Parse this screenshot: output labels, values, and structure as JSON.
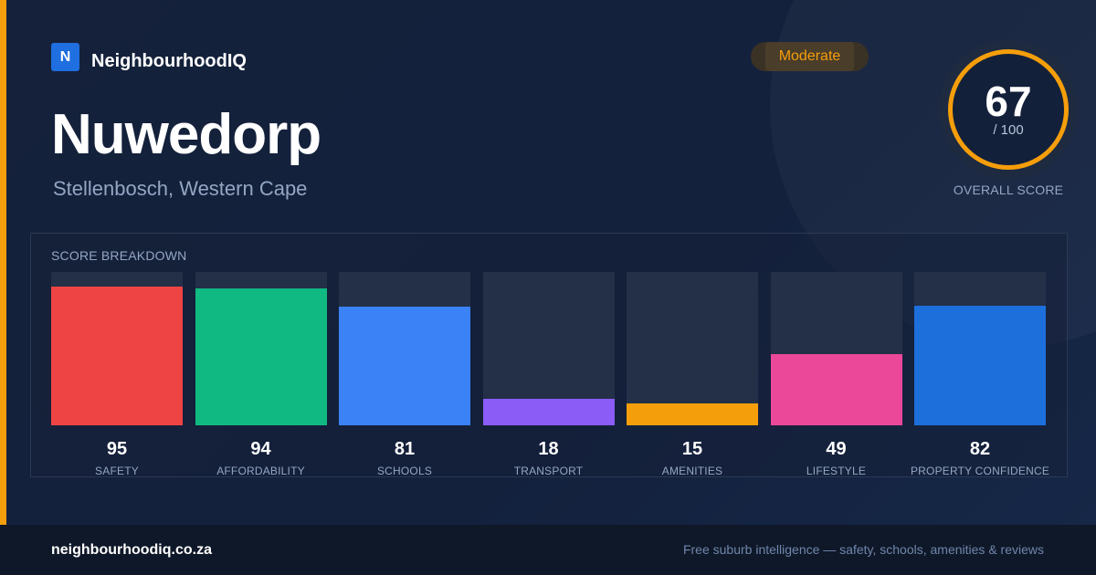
{
  "brand": {
    "logo_letter": "N",
    "name": "NeighbourhoodIQ"
  },
  "suburb": {
    "name": "Nuwedorp",
    "location": "Stellenbosch, Western Cape"
  },
  "rating_badge": "Moderate",
  "overall": {
    "score": "67",
    "out_of": "/ 100",
    "label": "OVERALL SCORE",
    "ring_color": "#f59e0b"
  },
  "breakdown": {
    "title": "SCORE BREAKDOWN",
    "items": [
      {
        "label": "SAFETY",
        "value": 95,
        "color": "#ef4444"
      },
      {
        "label": "AFFORDABILITY",
        "value": 94,
        "color": "#10b981"
      },
      {
        "label": "SCHOOLS",
        "value": 81,
        "color": "#3b82f6"
      },
      {
        "label": "TRANSPORT",
        "value": 18,
        "color": "#8b5cf6"
      },
      {
        "label": "AMENITIES",
        "value": 15,
        "color": "#f59e0b"
      },
      {
        "label": "LIFESTYLE",
        "value": 49,
        "color": "#ec4899"
      },
      {
        "label": "PROPERTY CONFIDENCE",
        "value": 82,
        "color": "#1d6fdc"
      }
    ]
  },
  "footer": {
    "url": "neighbourhoodiq.co.za",
    "tagline": "Free suburb intelligence — safety, schools, amenities & reviews"
  },
  "colors": {
    "accent": "#f59e0b",
    "background": "#13203a"
  }
}
